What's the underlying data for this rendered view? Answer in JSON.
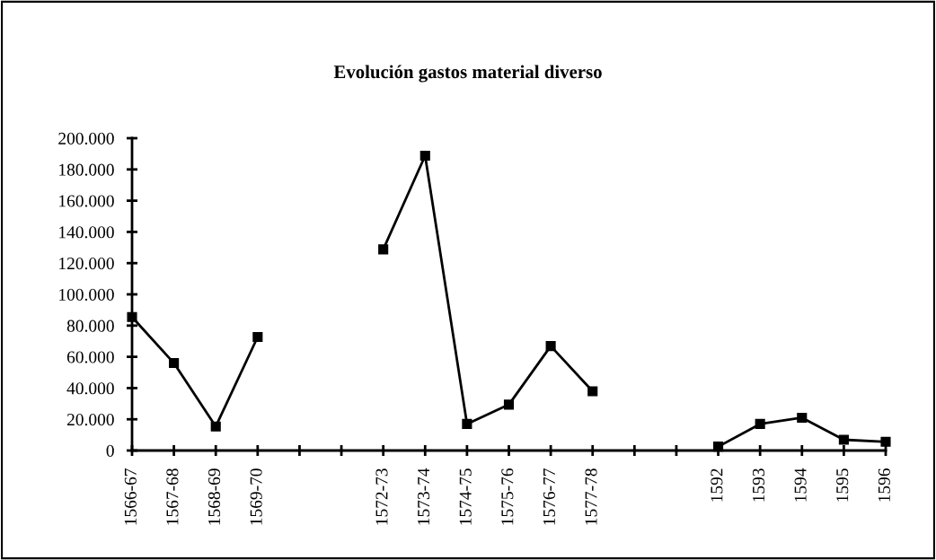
{
  "chart_data": {
    "type": "line",
    "title": "Evolución gastos material diverso",
    "categories": [
      "1566-67",
      "1567-68",
      "1568-69",
      "1569-70",
      null,
      null,
      "1572-73",
      "1573-74",
      "1574-75",
      "1575-76",
      "1576-77",
      "1577-78",
      null,
      null,
      "1592",
      "1593",
      "1594",
      "1595",
      "1596"
    ],
    "series": [
      {
        "color": "#000000",
        "values": [
          85500,
          56000,
          15400,
          72700,
          null,
          null,
          128800,
          188800,
          17000,
          29400,
          66900,
          37900,
          null,
          null,
          2500,
          17000,
          21000,
          6900,
          5600
        ]
      }
    ],
    "ylim": [
      0,
      200000
    ],
    "yticks": [
      0,
      {
        "value": 20000,
        "label": "20.000"
      },
      {
        "value": 40000,
        "label": "40.000"
      },
      {
        "value": 60000,
        "label": "60.000"
      },
      {
        "value": 80000,
        "label": "80.000"
      },
      {
        "value": 100000,
        "label": "100.000"
      },
      {
        "value": 120000,
        "label": "120.000"
      },
      {
        "value": 140000,
        "label": "140.000"
      },
      {
        "value": 160000,
        "label": "160.000"
      },
      {
        "value": 180000,
        "label": "180.000"
      },
      {
        "value": 200000,
        "label": "200.000"
      }
    ],
    "grid": false,
    "legend": false,
    "marker": "square",
    "line_style": "solid"
  }
}
